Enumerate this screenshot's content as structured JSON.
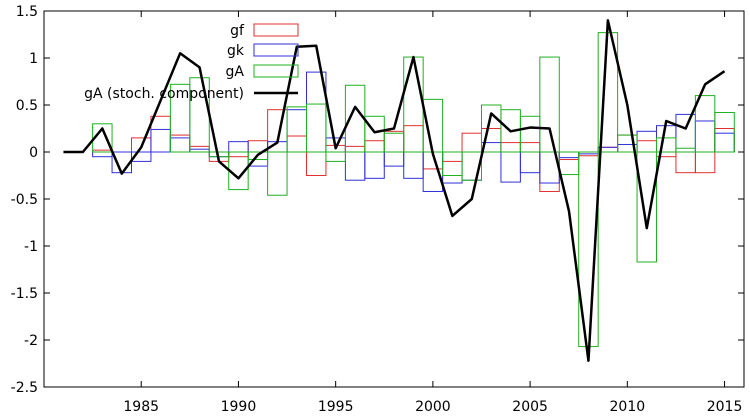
{
  "chart_data": {
    "type": "bar",
    "title": "",
    "xlabel": "",
    "ylabel": "",
    "xlim": [
      1980,
      2016
    ],
    "ylim": [
      -2.5,
      1.5
    ],
    "xticks": [
      "1985",
      "1990",
      "1995",
      "2000",
      "2005",
      "2010",
      "2015"
    ],
    "yticks": [
      "1.5",
      "1",
      "0.5",
      "0",
      "-0.5",
      "-1",
      "-1.5",
      "-2",
      "-2.5"
    ],
    "legend_position": "top-center",
    "colors": {
      "gf": "#e03030",
      "gk": "#3030d8",
      "gA": "#20b020",
      "line": "#000000"
    },
    "series": [
      {
        "name": "gf",
        "style": "steps",
        "x": [
          1982,
          1983,
          1984,
          1985,
          1986,
          1987,
          1988,
          1989,
          1990,
          1991,
          1992,
          1993,
          1994,
          1995,
          1996,
          1997,
          1998,
          1999,
          2000,
          2001,
          2002,
          2003,
          2004,
          2005,
          2006,
          2007,
          2008,
          2009,
          2010,
          2011,
          2012,
          2013,
          2014,
          2015
        ],
        "values": [
          0.0,
          0.02,
          0.0,
          0.15,
          0.38,
          0.18,
          0.06,
          -0.1,
          -0.05,
          0.12,
          0.45,
          0.17,
          -0.25,
          0.07,
          0.06,
          0.12,
          0.22,
          0.28,
          -0.18,
          -0.1,
          0.2,
          0.25,
          0.1,
          0.1,
          -0.42,
          -0.08,
          -0.04,
          0.05,
          0.18,
          0.12,
          -0.05,
          -0.22,
          -0.22,
          0.25
        ]
      },
      {
        "name": "gk",
        "style": "steps",
        "x": [
          1982,
          1983,
          1984,
          1985,
          1986,
          1987,
          1988,
          1989,
          1990,
          1991,
          1992,
          1993,
          1994,
          1995,
          1996,
          1997,
          1998,
          1999,
          2000,
          2001,
          2002,
          2003,
          2004,
          2005,
          2006,
          2007,
          2008,
          2009,
          2010,
          2011,
          2012,
          2013,
          2014,
          2015
        ],
        "values": [
          0.0,
          -0.05,
          -0.22,
          -0.1,
          0.24,
          0.15,
          0.03,
          -0.05,
          0.11,
          -0.15,
          0.11,
          0.45,
          0.85,
          0.15,
          -0.3,
          -0.28,
          -0.15,
          -0.28,
          -0.42,
          -0.33,
          -0.3,
          0.1,
          -0.32,
          -0.22,
          -0.33,
          -0.06,
          -0.02,
          0.05,
          0.08,
          0.22,
          0.28,
          0.4,
          0.33,
          0.2
        ]
      },
      {
        "name": "gA",
        "style": "steps",
        "x": [
          1982,
          1983,
          1984,
          1985,
          1986,
          1987,
          1988,
          1989,
          1990,
          1991,
          1992,
          1993,
          1994,
          1995,
          1996,
          1997,
          1998,
          1999,
          2000,
          2001,
          2002,
          2003,
          2004,
          2005,
          2006,
          2007,
          2008,
          2009,
          2010,
          2011,
          2012,
          2013,
          2014,
          2015
        ],
        "values": [
          0.0,
          0.3,
          0.0,
          0.0,
          0.0,
          0.72,
          0.79,
          -0.05,
          -0.4,
          -0.08,
          -0.46,
          0.48,
          0.51,
          -0.1,
          0.71,
          0.38,
          0.2,
          1.01,
          0.56,
          -0.25,
          -0.3,
          0.5,
          0.45,
          0.38,
          1.01,
          -0.24,
          -2.07,
          1.27,
          0.18,
          -1.17,
          0.15,
          0.04,
          0.6,
          0.42
        ]
      },
      {
        "name": "gA (stoch. component)",
        "style": "line",
        "x": [
          1981,
          1982,
          1983,
          1984,
          1985,
          1986,
          1987,
          1988,
          1989,
          1990,
          1991,
          1992,
          1993,
          1994,
          1995,
          1996,
          1997,
          1998,
          1999,
          2000,
          2001,
          2002,
          2003,
          2004,
          2005,
          2006,
          2007,
          2008,
          2009,
          2010,
          2011,
          2012,
          2013,
          2014,
          2015
        ],
        "values": [
          0.0,
          0.0,
          0.25,
          -0.23,
          0.05,
          0.55,
          1.05,
          0.9,
          -0.1,
          -0.28,
          -0.03,
          0.1,
          1.12,
          1.13,
          0.04,
          0.48,
          0.21,
          0.25,
          1.01,
          -0.02,
          -0.68,
          -0.5,
          0.41,
          0.22,
          0.26,
          0.25,
          -0.63,
          -2.22,
          1.4,
          0.5,
          -0.81,
          0.33,
          0.25,
          0.72,
          0.86
        ]
      }
    ]
  }
}
